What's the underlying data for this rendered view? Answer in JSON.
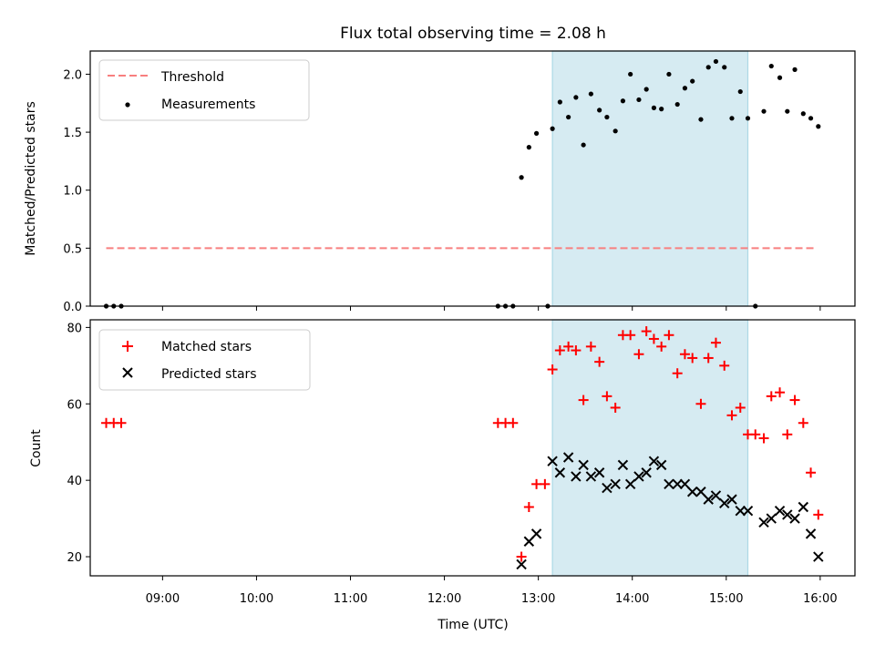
{
  "chart_data": [
    {
      "type": "scatter",
      "title": "Flux total observing time = 2.08 h",
      "xlabel": "",
      "ylabel": "Matched/Predicted stars",
      "xlim": [
        8.23,
        16.37
      ],
      "ylim": [
        0,
        2.2
      ],
      "yticks": [
        0.0,
        0.5,
        1.0,
        1.5,
        2.0
      ],
      "ytick_labels": [
        "0.0",
        "0.5",
        "1.0",
        "1.5",
        "2.0"
      ],
      "shaded_interval": [
        13.15,
        15.23
      ],
      "series": [
        {
          "name": "Threshold",
          "style": "dashed-line",
          "color": "#f87f7f",
          "x": [
            8.4,
            15.95
          ],
          "y": [
            0.5,
            0.5
          ]
        },
        {
          "name": "Measurements",
          "style": "dot",
          "color": "#000000",
          "x": [
            8.4,
            8.48,
            8.56,
            12.57,
            12.65,
            12.73,
            12.82,
            12.9,
            12.98,
            13.1,
            13.15,
            13.23,
            13.32,
            13.4,
            13.48,
            13.56,
            13.65,
            13.73,
            13.82,
            13.9,
            13.98,
            14.07,
            14.15,
            14.23,
            14.31,
            14.39,
            14.48,
            14.56,
            14.64,
            14.73,
            14.81,
            14.89,
            14.98,
            15.06,
            15.15,
            15.23,
            15.31,
            15.4,
            15.48,
            15.57,
            15.65,
            15.73,
            15.82,
            15.9,
            15.98
          ],
          "y": [
            0.0,
            0.0,
            0.0,
            0.0,
            0.0,
            0.0,
            1.11,
            1.37,
            1.49,
            0.0,
            1.53,
            1.76,
            1.63,
            1.8,
            1.39,
            1.83,
            1.69,
            1.63,
            1.51,
            1.77,
            2.0,
            1.78,
            1.87,
            1.71,
            1.7,
            2.0,
            1.74,
            1.88,
            1.94,
            1.61,
            2.06,
            2.11,
            2.06,
            1.62,
            1.85,
            1.62,
            0.0,
            1.68,
            2.07,
            1.97,
            1.68,
            2.04,
            1.66,
            1.62,
            1.55
          ]
        }
      ]
    },
    {
      "type": "scatter",
      "title": "",
      "xlabel": "Time (UTC)",
      "ylabel": "Count",
      "xlim": [
        8.23,
        16.37
      ],
      "ylim": [
        15,
        82
      ],
      "yticks": [
        20,
        40,
        60,
        80
      ],
      "ytick_labels": [
        "20",
        "40",
        "60",
        "80"
      ],
      "xticks": [
        9,
        10,
        11,
        12,
        13,
        14,
        15,
        16
      ],
      "xtick_labels": [
        "09:00",
        "10:00",
        "11:00",
        "12:00",
        "13:00",
        "14:00",
        "15:00",
        "16:00"
      ],
      "shaded_interval": [
        13.15,
        15.23
      ],
      "series": [
        {
          "name": "Matched stars",
          "style": "plus",
          "color": "#ff0000",
          "x": [
            8.4,
            8.48,
            8.56,
            12.57,
            12.65,
            12.73,
            12.82,
            12.9,
            12.98,
            13.07,
            13.15,
            13.23,
            13.32,
            13.4,
            13.48,
            13.56,
            13.65,
            13.73,
            13.82,
            13.9,
            13.98,
            14.07,
            14.15,
            14.23,
            14.31,
            14.39,
            14.48,
            14.56,
            14.64,
            14.73,
            14.81,
            14.89,
            14.98,
            15.06,
            15.15,
            15.23,
            15.31,
            15.4,
            15.48,
            15.57,
            15.65,
            15.73,
            15.82,
            15.9,
            15.98
          ],
          "y": [
            55,
            55,
            55,
            55,
            55,
            55,
            20,
            33,
            39,
            39,
            69,
            74,
            75,
            74,
            61,
            75,
            71,
            62,
            59,
            78,
            78,
            73,
            79,
            77,
            75,
            78,
            68,
            73,
            72,
            60,
            72,
            76,
            70,
            57,
            59,
            52,
            52,
            51,
            62,
            63,
            52,
            61,
            55,
            42,
            31
          ]
        },
        {
          "name": "Predicted stars",
          "style": "x",
          "color": "#000000",
          "x": [
            12.82,
            12.9,
            12.98,
            13.15,
            13.23,
            13.32,
            13.4,
            13.48,
            13.56,
            13.65,
            13.73,
            13.82,
            13.9,
            13.98,
            14.07,
            14.15,
            14.23,
            14.31,
            14.39,
            14.48,
            14.56,
            14.64,
            14.73,
            14.81,
            14.89,
            14.98,
            15.06,
            15.15,
            15.23,
            15.4,
            15.48,
            15.57,
            15.65,
            15.73,
            15.82,
            15.9,
            15.98
          ],
          "y": [
            18,
            24,
            26,
            45,
            42,
            46,
            41,
            44,
            41,
            42,
            38,
            39,
            44,
            39,
            41,
            42,
            45,
            44,
            39,
            39,
            39,
            37,
            37,
            35,
            36,
            34,
            35,
            32,
            32,
            29,
            30,
            32,
            31,
            30,
            33,
            26,
            20
          ]
        }
      ]
    }
  ]
}
